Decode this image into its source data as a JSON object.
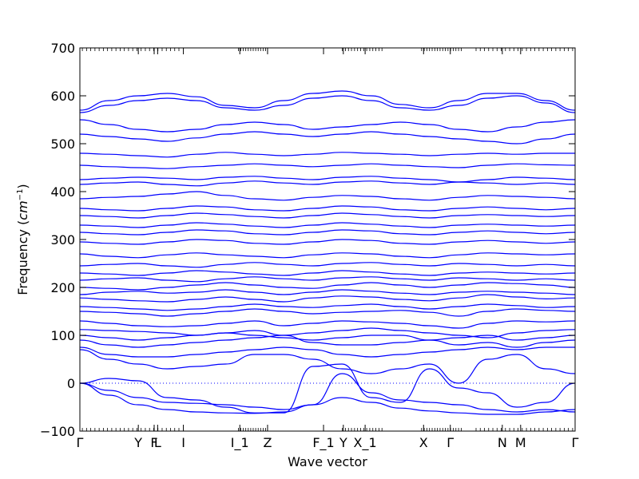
{
  "chart_data": {
    "type": "line",
    "xlabel": "Wave vector",
    "ylabel": "Frequency",
    "ylabel_unit": "cm",
    "ylabel_unit_exp": "−1",
    "ylim": [
      -100,
      700
    ],
    "yticks": [
      "−100",
      "0",
      "100",
      "200",
      "300",
      "400",
      "500",
      "600",
      "700"
    ],
    "ytick_values": [
      -100,
      0,
      100,
      200,
      300,
      400,
      500,
      600,
      700
    ],
    "xlim": [
      0,
      1
    ],
    "high_symmetry_points": [
      {
        "label": "Γ",
        "x": 0.0
      },
      {
        "label": "Y",
        "x": 0.118
      },
      {
        "label": "F",
        "x": 0.15
      },
      {
        "label": "L",
        "x": 0.157
      },
      {
        "label": "I",
        "x": 0.209
      },
      {
        "label": "I_1",
        "x": 0.323
      },
      {
        "label": "Z",
        "x": 0.379
      },
      {
        "label": "F_1",
        "x": 0.492
      },
      {
        "label": "Y",
        "x": 0.532
      },
      {
        "label": "X_1",
        "x": 0.576
      },
      {
        "label": "X",
        "x": 0.694
      },
      {
        "label": "Γ",
        "x": 0.748
      },
      {
        "label": "N",
        "x": 0.853
      },
      {
        "label": "M",
        "x": 0.89
      },
      {
        "label": "Γ",
        "x": 1.0
      }
    ],
    "minor_tick_clusters": [
      {
        "from": 0.005,
        "to": 0.2,
        "count": 24
      },
      {
        "from": 0.32,
        "to": 0.375,
        "count": 12
      },
      {
        "from": 0.53,
        "to": 0.61,
        "count": 14
      },
      {
        "from": 0.69,
        "to": 0.77,
        "count": 16
      },
      {
        "from": 0.8,
        "to": 0.995,
        "count": 24
      }
    ],
    "zero_line": 0,
    "grid": false,
    "series_color": "#0000ff",
    "zero_line_color": "#0000ff",
    "bands": [
      {
        "values": [
          0,
          -25,
          -45,
          -55,
          -60,
          -62,
          -63,
          -60,
          -45,
          -30,
          -40,
          -52,
          -58,
          -62,
          -65,
          -65,
          -60,
          -55
        ]
      },
      {
        "values": [
          0,
          -15,
          -30,
          -40,
          -42,
          -45,
          -50,
          -55,
          -45,
          20,
          -20,
          -35,
          -40,
          -45,
          -55,
          -60,
          -55,
          -60
        ]
      },
      {
        "values": [
          0,
          10,
          5,
          -30,
          -35,
          -50,
          -62,
          -62,
          35,
          40,
          -30,
          -40,
          30,
          -10,
          -20,
          -50,
          -40,
          0
        ]
      },
      {
        "values": [
          70,
          50,
          40,
          30,
          35,
          40,
          60,
          60,
          50,
          30,
          20,
          30,
          40,
          0,
          50,
          60,
          30,
          20
        ]
      },
      {
        "values": [
          75,
          60,
          55,
          55,
          60,
          65,
          70,
          75,
          70,
          60,
          55,
          60,
          65,
          70,
          75,
          70,
          75,
          75
        ]
      },
      {
        "values": [
          90,
          80,
          75,
          80,
          85,
          90,
          95,
          100,
          85,
          80,
          80,
          85,
          90,
          80,
          85,
          75,
          85,
          90
        ]
      },
      {
        "values": [
          100,
          95,
          90,
          95,
          100,
          105,
          100,
          95,
          90,
          95,
          100,
          100,
          90,
          95,
          100,
          90,
          95,
          100
        ]
      },
      {
        "values": [
          112,
          110,
          108,
          105,
          100,
          105,
          110,
          100,
          105,
          110,
          115,
          110,
          105,
          100,
          95,
          105,
          110,
          112
        ]
      },
      {
        "values": [
          130,
          125,
          120,
          118,
          120,
          125,
          130,
          120,
          125,
          130,
          128,
          125,
          120,
          115,
          125,
          130,
          128,
          130
        ]
      },
      {
        "values": [
          150,
          148,
          145,
          140,
          145,
          150,
          155,
          150,
          145,
          148,
          150,
          152,
          148,
          140,
          150,
          155,
          152,
          150
        ]
      },
      {
        "values": [
          160,
          158,
          155,
          152,
          155,
          160,
          165,
          160,
          158,
          162,
          165,
          160,
          155,
          160,
          165,
          162,
          158,
          160
        ]
      },
      {
        "values": [
          178,
          175,
          172,
          170,
          175,
          180,
          175,
          170,
          178,
          182,
          180,
          175,
          172,
          178,
          185,
          180,
          176,
          178
        ]
      },
      {
        "values": [
          185,
          190,
          192,
          188,
          190,
          195,
          190,
          185,
          190,
          195,
          192,
          188,
          185,
          190,
          192,
          190,
          188,
          185
        ]
      },
      {
        "values": [
          200,
          198,
          195,
          200,
          205,
          210,
          205,
          200,
          198,
          205,
          210,
          205,
          200,
          205,
          210,
          208,
          205,
          200
        ]
      },
      {
        "values": [
          215,
          218,
          220,
          215,
          212,
          218,
          222,
          218,
          215,
          220,
          222,
          218,
          215,
          220,
          218,
          215,
          218,
          215
        ]
      },
      {
        "values": [
          230,
          228,
          225,
          230,
          235,
          232,
          228,
          225,
          230,
          235,
          232,
          228,
          225,
          230,
          232,
          230,
          228,
          230
        ]
      },
      {
        "values": [
          245,
          248,
          250,
          245,
          242,
          248,
          252,
          248,
          245,
          250,
          252,
          248,
          245,
          250,
          248,
          245,
          248,
          245
        ]
      },
      {
        "values": [
          270,
          265,
          262,
          268,
          272,
          268,
          265,
          262,
          268,
          272,
          270,
          265,
          262,
          268,
          272,
          270,
          268,
          270
        ]
      },
      {
        "values": [
          295,
          292,
          290,
          295,
          300,
          298,
          292,
          290,
          295,
          300,
          298,
          292,
          290,
          295,
          298,
          295,
          292,
          295
        ]
      },
      {
        "values": [
          315,
          312,
          310,
          315,
          320,
          318,
          312,
          310,
          315,
          320,
          318,
          312,
          310,
          315,
          318,
          315,
          312,
          315
        ]
      },
      {
        "values": [
          330,
          328,
          325,
          330,
          335,
          332,
          328,
          325,
          330,
          335,
          332,
          328,
          325,
          330,
          332,
          330,
          328,
          330
        ]
      },
      {
        "values": [
          350,
          348,
          345,
          350,
          355,
          352,
          348,
          345,
          350,
          355,
          352,
          348,
          345,
          350,
          352,
          350,
          348,
          350
        ]
      },
      {
        "values": [
          365,
          362,
          360,
          365,
          370,
          368,
          362,
          360,
          365,
          370,
          368,
          362,
          360,
          365,
          368,
          365,
          362,
          365
        ]
      },
      {
        "values": [
          385,
          388,
          390,
          395,
          400,
          392,
          385,
          382,
          388,
          392,
          390,
          385,
          382,
          388,
          392,
          390,
          388,
          385
        ]
      },
      {
        "values": [
          415,
          418,
          420,
          415,
          412,
          418,
          422,
          418,
          415,
          420,
          422,
          418,
          415,
          420,
          418,
          415,
          418,
          415
        ]
      },
      {
        "values": [
          425,
          428,
          430,
          428,
          425,
          430,
          432,
          428,
          425,
          430,
          432,
          428,
          425,
          420,
          425,
          430,
          428,
          425
        ]
      },
      {
        "values": [
          455,
          452,
          450,
          448,
          452,
          455,
          458,
          455,
          452,
          455,
          458,
          455,
          452,
          450,
          455,
          458,
          456,
          455
        ]
      },
      {
        "values": [
          480,
          478,
          475,
          472,
          478,
          482,
          478,
          475,
          478,
          482,
          480,
          478,
          475,
          478,
          480,
          478,
          480,
          480
        ]
      },
      {
        "values": [
          520,
          515,
          510,
          505,
          512,
          520,
          525,
          520,
          515,
          520,
          525,
          520,
          515,
          510,
          505,
          500,
          510,
          520
        ]
      },
      {
        "values": [
          550,
          540,
          530,
          525,
          530,
          540,
          545,
          540,
          530,
          535,
          540,
          545,
          540,
          530,
          525,
          535,
          545,
          550
        ]
      },
      {
        "values": [
          565,
          580,
          590,
          595,
          590,
          575,
          570,
          580,
          595,
          600,
          590,
          575,
          570,
          580,
          595,
          600,
          585,
          565
        ]
      },
      {
        "values": [
          570,
          590,
          600,
          605,
          598,
          580,
          575,
          590,
          605,
          610,
          600,
          582,
          575,
          590,
          605,
          605,
          590,
          570
        ]
      }
    ]
  }
}
